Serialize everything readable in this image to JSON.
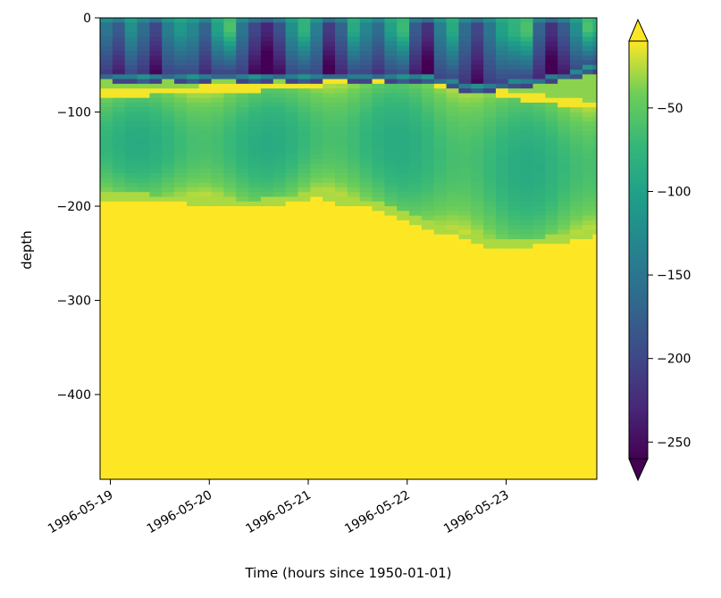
{
  "chart_data": {
    "type": "heatmap",
    "xlabel": "Time (hours since 1950-01-01)",
    "ylabel": "depth",
    "x_tick_labels": [
      "1996-05-19",
      "1996-05-20",
      "1996-05-21",
      "1996-05-22",
      "1996-05-23"
    ],
    "y_tick_labels": [
      "0",
      "−100",
      "−200",
      "−300",
      "−400"
    ],
    "y_ticks": [
      0,
      -100,
      -200,
      -300,
      -400
    ],
    "ylim": [
      -490,
      0
    ],
    "xlim": [
      "1996-05-18T21:30",
      "1996-05-23T22:00"
    ],
    "colorbar": {
      "colormap": "viridis",
      "tick_labels": [
        "−50",
        "−100",
        "−150",
        "−200",
        "−250"
      ],
      "ticks": [
        -50,
        -100,
        -150,
        -200,
        -250
      ],
      "range": [
        -260,
        -10
      ],
      "extend": "both"
    },
    "x_times": [
      "1996-05-18T21:30",
      "1996-05-19T00:30",
      "1996-05-19T03:30",
      "1996-05-19T06:30",
      "1996-05-19T09:30",
      "1996-05-19T12:30",
      "1996-05-19T15:30",
      "1996-05-19T18:30",
      "1996-05-19T21:30",
      "1996-05-20T00:30",
      "1996-05-20T03:30",
      "1996-05-20T06:30",
      "1996-05-20T09:30",
      "1996-05-20T12:30",
      "1996-05-20T15:30",
      "1996-05-20T18:30",
      "1996-05-20T21:30",
      "1996-05-21T00:30",
      "1996-05-21T03:30",
      "1996-05-21T06:30",
      "1996-05-21T09:30",
      "1996-05-21T12:30",
      "1996-05-21T15:30",
      "1996-05-21T18:30",
      "1996-05-21T21:30",
      "1996-05-22T00:30",
      "1996-05-22T03:30",
      "1996-05-22T06:30",
      "1996-05-22T09:30",
      "1996-05-22T12:30",
      "1996-05-22T15:30",
      "1996-05-22T18:30",
      "1996-05-22T21:30",
      "1996-05-23T00:30",
      "1996-05-23T03:30",
      "1996-05-23T06:30",
      "1996-05-23T09:30",
      "1996-05-23T12:30",
      "1996-05-23T15:30",
      "1996-05-23T18:30",
      "1996-05-23T21:00",
      "1996-05-23T22:00"
    ],
    "surface_values": [
      -150,
      -180,
      -120,
      -160,
      -200,
      -140,
      -110,
      -130,
      -170,
      -100,
      -60,
      -150,
      -200,
      -230,
      -190,
      -120,
      -80,
      -140,
      -210,
      -170,
      -90,
      -130,
      -160,
      -100,
      -70,
      -180,
      -220,
      -140,
      -90,
      -160,
      -200,
      -150,
      -100,
      -80,
      -60,
      -170,
      -220,
      -180,
      -120,
      -60,
      -80,
      -60
    ],
    "top_layer_base_depth": [
      -58,
      -60,
      -60,
      -62,
      -60,
      -58,
      -60,
      -62,
      -60,
      -58,
      -58,
      -60,
      -62,
      -60,
      -58,
      -60,
      -62,
      -60,
      -58,
      -58,
      -60,
      -60,
      -58,
      -60,
      -62,
      -60,
      -62,
      -64,
      -66,
      -70,
      -72,
      -70,
      -68,
      -66,
      -65,
      -64,
      -60,
      -58,
      -56,
      -52,
      -50,
      -50
    ],
    "mixed_layer_base_depth": [
      -185,
      -185,
      -186,
      -187,
      -188,
      -188,
      -189,
      -190,
      -190,
      -191,
      -192,
      -193,
      -193,
      -192,
      -190,
      -188,
      -186,
      -184,
      -186,
      -190,
      -192,
      -194,
      -195,
      -200,
      -205,
      -210,
      -215,
      -220,
      -224,
      -228,
      -232,
      -235,
      -236,
      -236,
      -235,
      -234,
      -232,
      -230,
      -228,
      -226,
      -224,
      -224
    ],
    "thermocline_min_depth": [
      -80,
      -80,
      -79,
      -79,
      -78,
      -78,
      -77,
      -77,
      -76,
      -76,
      -75,
      -75,
      -74,
      -73,
      -72,
      -71,
      -70,
      -69,
      -68,
      -67,
      -66,
      -65,
      -64,
      -64,
      -65,
      -66,
      -68,
      -70,
      -72,
      -74,
      -76,
      -78,
      -80,
      -82,
      -84,
      -86,
      -88,
      -90,
      -90,
      -92,
      -92,
      -92
    ]
  }
}
